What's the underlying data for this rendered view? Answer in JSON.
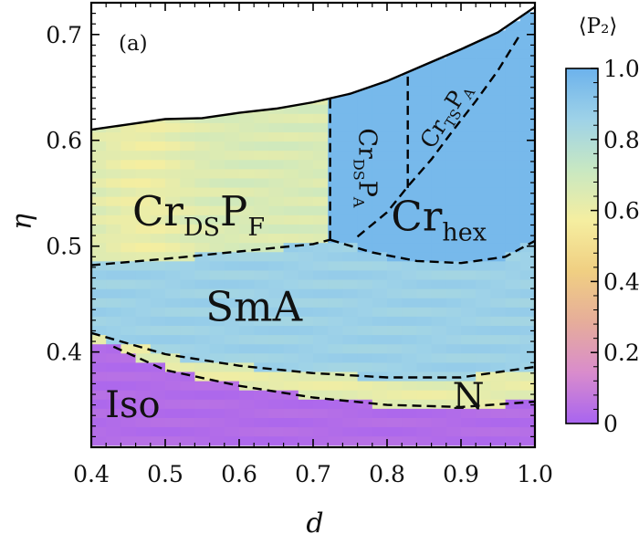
{
  "chart_data": {
    "type": "heatmap",
    "panel_label": "(a)",
    "xlabel": "d",
    "ylabel": "η",
    "xlim": [
      0.4,
      1.0
    ],
    "ylim": [
      0.31,
      0.73
    ],
    "xticks": [
      "0.4",
      "0.5",
      "0.6",
      "0.7",
      "0.8",
      "0.9",
      "1.0"
    ],
    "xtick_values": [
      0.4,
      0.5,
      0.6,
      0.7,
      0.8,
      0.9,
      1.0
    ],
    "yticks": [
      "0.4",
      "0.5",
      "0.6",
      "0.7"
    ],
    "ytick_values": [
      0.4,
      0.5,
      0.6,
      0.7
    ],
    "colorbar": {
      "title": "⟨P₂⟩",
      "range": [
        0,
        1
      ],
      "ticks": [
        "0",
        "0.2",
        "0.4",
        "0.6",
        "0.8",
        "1.0"
      ],
      "tick_values": [
        0,
        0.2,
        0.4,
        0.6,
        0.8,
        1.0
      ],
      "colors": [
        "#a864f0",
        "#d98ccc",
        "#e6ad9a",
        "#f0cf82",
        "#f5eea0",
        "#c8e8c2",
        "#9ed2e8",
        "#6cb2ec"
      ]
    },
    "upper_boundary": {
      "style": "solid",
      "d": [
        0.4,
        0.45,
        0.5,
        0.55,
        0.6,
        0.65,
        0.7,
        0.75,
        0.8,
        0.85,
        0.9,
        0.95,
        1.0
      ],
      "eta": [
        0.61,
        0.615,
        0.62,
        0.621,
        0.626,
        0.63,
        0.636,
        0.644,
        0.656,
        0.671,
        0.686,
        0.702,
        0.726
      ]
    },
    "phase_boundaries": [
      {
        "name": "CrDSPF_SmA",
        "d": [
          0.4,
          0.5,
          0.6,
          0.7,
          0.723
        ],
        "eta": [
          0.482,
          0.488,
          0.495,
          0.502,
          0.506
        ]
      },
      {
        "name": "CrDSPF_CrDSPA",
        "d": [
          0.723,
          0.723
        ],
        "eta": [
          0.506,
          0.642
        ]
      },
      {
        "name": "CrDSPA_CrTSPA",
        "d": [
          0.828,
          0.828
        ],
        "eta": [
          0.555,
          0.661
        ]
      },
      {
        "name": "CrDSPA_Crhex",
        "d": [
          0.76,
          0.8,
          0.83,
          0.86,
          0.89,
          0.92,
          0.95,
          0.98
        ],
        "eta": [
          0.509,
          0.532,
          0.558,
          0.582,
          0.61,
          0.637,
          0.666,
          0.7
        ]
      },
      {
        "name": "Crhex_SmA",
        "d": [
          0.723,
          0.78,
          0.84,
          0.9,
          0.96,
          1.0
        ],
        "eta": [
          0.506,
          0.494,
          0.486,
          0.484,
          0.49,
          0.505
        ]
      },
      {
        "name": "SmA_N",
        "d": [
          0.4,
          0.5,
          0.6,
          0.7,
          0.8,
          0.9,
          1.0
        ],
        "eta": [
          0.418,
          0.398,
          0.387,
          0.38,
          0.376,
          0.376,
          0.386
        ]
      },
      {
        "name": "N_Iso",
        "d": [
          0.43,
          0.5,
          0.6,
          0.7,
          0.8,
          0.9,
          1.0
        ],
        "eta": [
          0.405,
          0.383,
          0.368,
          0.357,
          0.35,
          0.348,
          0.353
        ]
      }
    ],
    "phase_labels": [
      {
        "text": "Cr",
        "sub": "DS",
        "text2": "P",
        "sub2": "F",
        "d": 0.545,
        "eta": 0.53,
        "size": 45,
        "rotate": 0
      },
      {
        "text": "Cr",
        "sub": "hex",
        "text2": "",
        "sub2": "",
        "d": 0.87,
        "eta": 0.525,
        "size": 45,
        "rotate": 0
      },
      {
        "text": "SmA",
        "sub": "",
        "text2": "",
        "sub2": "",
        "d": 0.62,
        "eta": 0.44,
        "size": 45,
        "rotate": 0
      },
      {
        "text": "Iso",
        "sub": "",
        "text2": "",
        "sub2": "",
        "d": 0.456,
        "eta": 0.347,
        "size": 40,
        "rotate": 0
      },
      {
        "text": "N",
        "sub": "",
        "text2": "",
        "sub2": "",
        "d": 0.91,
        "eta": 0.355,
        "size": 40,
        "rotate": 0
      },
      {
        "text": "Cr",
        "sub": "DS",
        "text2": "P",
        "sub2": "A",
        "d": 0.772,
        "eta": 0.574,
        "size": 27,
        "rotate": 90
      },
      {
        "text": "Cr",
        "sub": "TS",
        "text2": "P",
        "sub2": "A",
        "d": 0.88,
        "eta": 0.623,
        "size": 25,
        "rotate": -58
      }
    ]
  }
}
